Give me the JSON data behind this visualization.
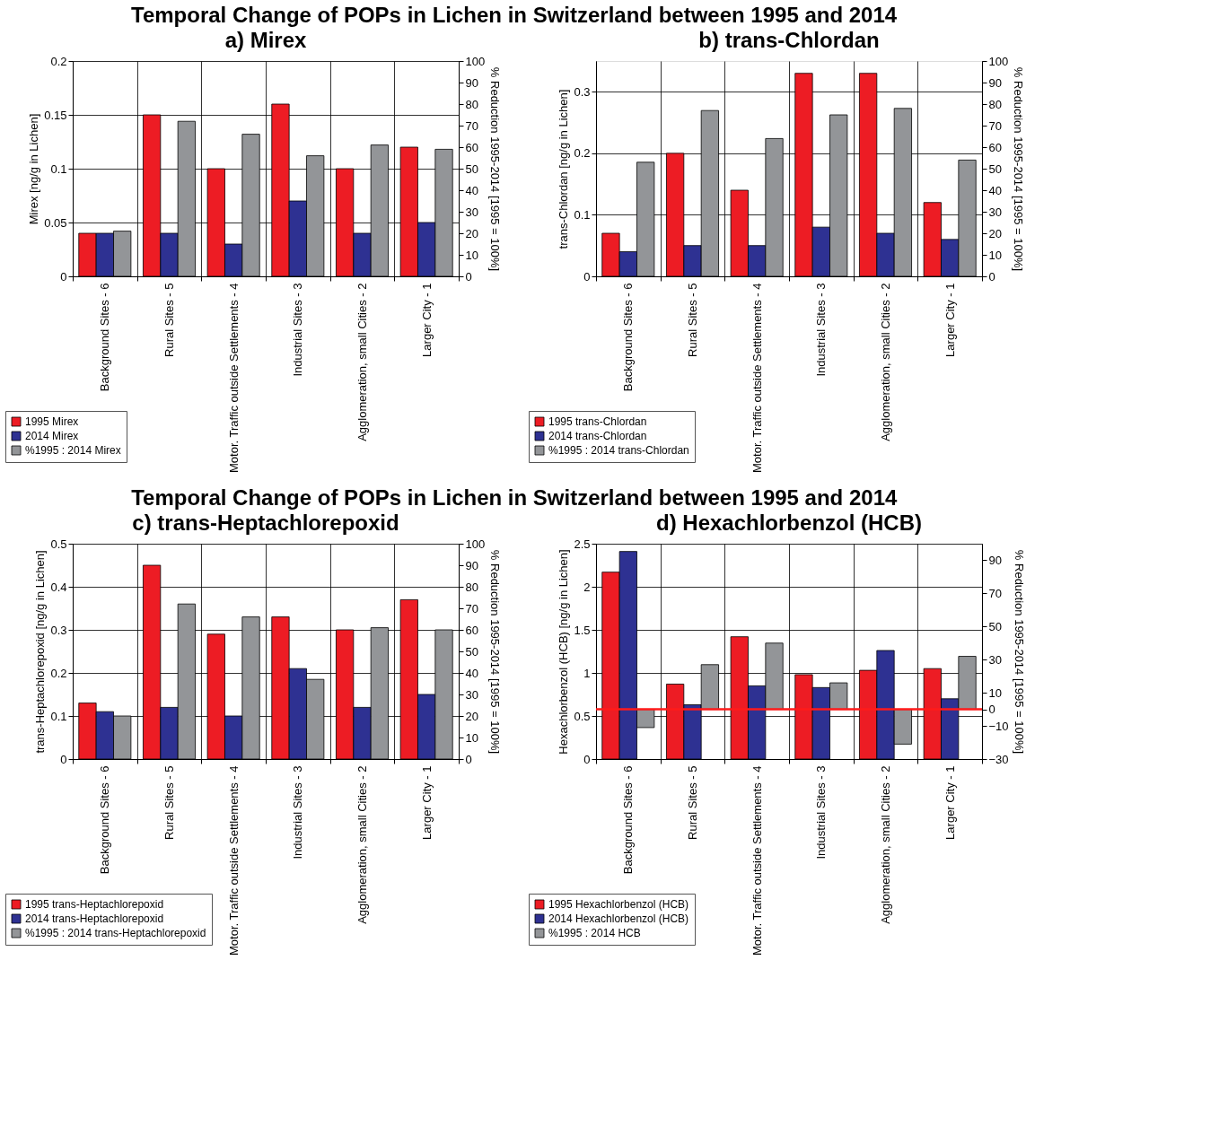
{
  "chart_data": [
    {
      "type": "bar",
      "title": "Temporal Change of POPs in Lichen in Switzerland between 1995 and 2014",
      "subtitle": "a)  Mirex",
      "categories": [
        "Background Sites - 6",
        "Rural Sites - 5",
        "Motor. Traffic outside Settlements - 4",
        "Industrial Sites - 3",
        "Agglomeration, small Cities - 2",
        "Larger City - 1"
      ],
      "series": [
        {
          "name": "1995 Mirex",
          "color": "#ed1c24",
          "values": [
            0.04,
            0.15,
            0.1,
            0.16,
            0.1,
            0.12
          ]
        },
        {
          "name": "2014 Mirex",
          "color": "#2e3192",
          "values": [
            0.04,
            0.04,
            0.03,
            0.07,
            0.04,
            0.05
          ]
        },
        {
          "name": "%1995 : 2014 Mirex",
          "color": "#939598",
          "axis": "y2",
          "values": [
            21,
            72,
            66,
            56,
            61,
            59
          ]
        }
      ],
      "ylabel": "Mirex [ng/g in Lichen]",
      "y2label": "% Reduction 1995-2014 [1995 = 100%]",
      "ylim": [
        0,
        0.2
      ],
      "yticks": [
        0,
        0.05,
        0.1,
        0.15,
        0.2
      ],
      "y2lim": [
        0,
        100
      ],
      "y2ticks": [
        0,
        10,
        20,
        30,
        40,
        50,
        60,
        70,
        80,
        90,
        100
      ],
      "grid": true,
      "legend": "bottom left"
    },
    {
      "type": "bar",
      "subtitle": "b)  trans-Chlordan",
      "categories": [
        "Background Sites - 6",
        "Rural Sites - 5",
        "Motor. Traffic outside Settlements - 4",
        "Industrial Sites - 3",
        "Agglomeration, small Cities - 2",
        "Larger City - 1"
      ],
      "series": [
        {
          "name": "1995 trans-Chlordan",
          "color": "#ed1c24",
          "values": [
            0.07,
            0.2,
            0.14,
            0.33,
            0.33,
            0.12
          ]
        },
        {
          "name": "2014 trans-Chlordan",
          "color": "#2e3192",
          "values": [
            0.04,
            0.05,
            0.05,
            0.08,
            0.07,
            0.06
          ]
        },
        {
          "name": "%1995 : 2014 trans-Chlordan",
          "color": "#939598",
          "axis": "y2",
          "values": [
            53,
            77,
            64,
            75,
            78,
            54
          ]
        }
      ],
      "ylabel": "trans-Chlordan [ng/g in Lichen]",
      "y2label": "% Reduction 1995-2014 [1995 = 100%]",
      "ylim": [
        0,
        0.35
      ],
      "yticks": [
        0,
        0.1,
        0.2,
        0.3
      ],
      "y2lim": [
        0,
        100
      ],
      "y2ticks": [
        0,
        10,
        20,
        30,
        40,
        50,
        60,
        70,
        80,
        90,
        100
      ],
      "grid": true,
      "legend": "bottom left"
    },
    {
      "type": "bar",
      "title": "Temporal Change of POPs in Lichen in Switzerland between 1995 and 2014",
      "subtitle": "c)  trans-Heptachlorepoxid",
      "categories": [
        "Background Sites - 6",
        "Rural Sites - 5",
        "Motor. Traffic outside Settlements - 4",
        "Industrial Sites - 3",
        "Agglomeration, small Cities - 2",
        "Larger City - 1"
      ],
      "series": [
        {
          "name": "1995 trans-Heptachlorepoxid",
          "color": "#ed1c24",
          "values": [
            0.13,
            0.45,
            0.29,
            0.33,
            0.3,
            0.37
          ]
        },
        {
          "name": "2014 trans-Heptachlorepoxid",
          "color": "#2e3192",
          "values": [
            0.11,
            0.12,
            0.1,
            0.21,
            0.12,
            0.15
          ]
        },
        {
          "name": "%1995 : 2014 trans-Heptachlorepoxid",
          "color": "#939598",
          "axis": "y2",
          "values": [
            20,
            72,
            66,
            37,
            61,
            60
          ]
        }
      ],
      "ylabel": "trans-Heptachlorepoxid [ng/g in Lichen]",
      "y2label": "% Reduction 1995-2014 [1995 = 100%]",
      "ylim": [
        0,
        0.5
      ],
      "yticks": [
        0,
        0.1,
        0.2,
        0.3,
        0.4,
        0.5
      ],
      "y2lim": [
        0,
        100
      ],
      "y2ticks": [
        0,
        10,
        20,
        30,
        40,
        50,
        60,
        70,
        80,
        90,
        100
      ],
      "grid": true,
      "legend": "bottom left"
    },
    {
      "type": "bar",
      "subtitle": "d)  Hexachlorbenzol (HCB)",
      "categories": [
        "Background Sites - 6",
        "Rural Sites - 5",
        "Motor. Traffic outside Settlements - 4",
        "Industrial Sites - 3",
        "Agglomeration, small Cities - 2",
        "Larger City - 1"
      ],
      "series": [
        {
          "name": "1995 Hexachlorbenzol (HCB)",
          "color": "#ed1c24",
          "values": [
            2.17,
            0.87,
            1.42,
            0.98,
            1.03,
            1.05
          ]
        },
        {
          "name": "2014 Hexachlorbenzol (HCB)",
          "color": "#2e3192",
          "values": [
            2.41,
            0.63,
            0.85,
            0.83,
            1.26,
            0.7
          ]
        },
        {
          "name": "%1995 : 2014 HCB",
          "color": "#939598",
          "axis": "y2",
          "values": [
            -11,
            27,
            40,
            16,
            -21,
            32
          ]
        }
      ],
      "ylabel": "Hexachlorbenzol (HCB) [ng/g in Lichen]",
      "y2label": "% Reduction 1995-2014 [1995 = 100%]",
      "ylim": [
        0,
        2.5
      ],
      "yticks": [
        0,
        0.5,
        1,
        1.5,
        2,
        2.5
      ],
      "y2lim": [
        -30,
        100
      ],
      "y2ticks": [
        -30,
        -10,
        0,
        10,
        30,
        50,
        70,
        90
      ],
      "ref_lines": [
        {
          "axis": "y2",
          "value": 0,
          "color": "#ff1a1a"
        }
      ],
      "grid": true,
      "legend": "bottom left"
    }
  ]
}
